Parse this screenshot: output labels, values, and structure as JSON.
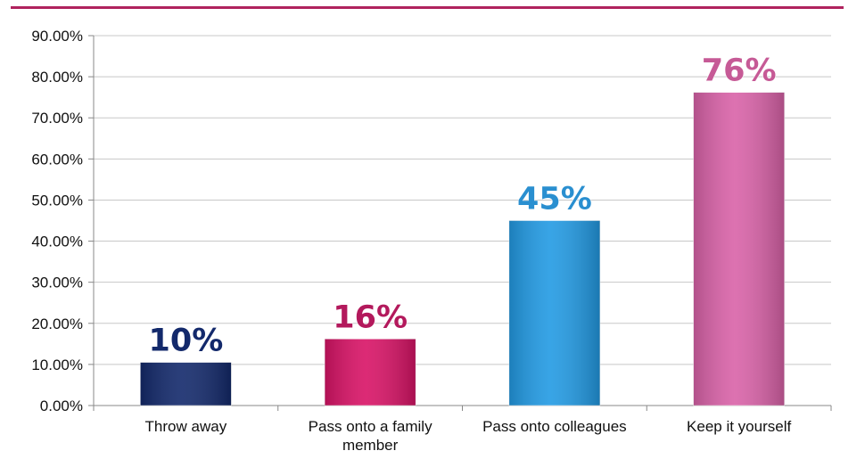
{
  "chart_data": {
    "type": "bar",
    "title": "",
    "xlabel": "",
    "ylabel": "",
    "categories": [
      "Throw away",
      "Pass onto a family member",
      "Pass onto colleagues",
      "Keep it yourself"
    ],
    "category_lines": [
      [
        "Throw away"
      ],
      [
        "Pass onto a family",
        "member"
      ],
      [
        "Pass onto colleagues"
      ],
      [
        "Keep it yourself"
      ]
    ],
    "values": [
      10.5,
      16.2,
      45.0,
      76.2
    ],
    "data_labels": [
      "10%",
      "16%",
      "45%",
      "76%"
    ],
    "bar_colors": [
      "#13296b",
      "#d81366",
      "#229ae3",
      "#d962a8"
    ],
    "label_colors": [
      "#13296b",
      "#b3195c",
      "#2a8fd0",
      "#c65a96"
    ],
    "ylim": [
      0,
      90
    ],
    "ytick_values": [
      0,
      10,
      20,
      30,
      40,
      50,
      60,
      70,
      80,
      90
    ],
    "ytick_labels": [
      "0.00%",
      "10.00%",
      "20.00%",
      "30.00%",
      "40.00%",
      "50.00%",
      "60.00%",
      "70.00%",
      "80.00%",
      "90.00%"
    ],
    "grid": true,
    "legend": "none",
    "accent_rule_color": "#b0235e"
  }
}
